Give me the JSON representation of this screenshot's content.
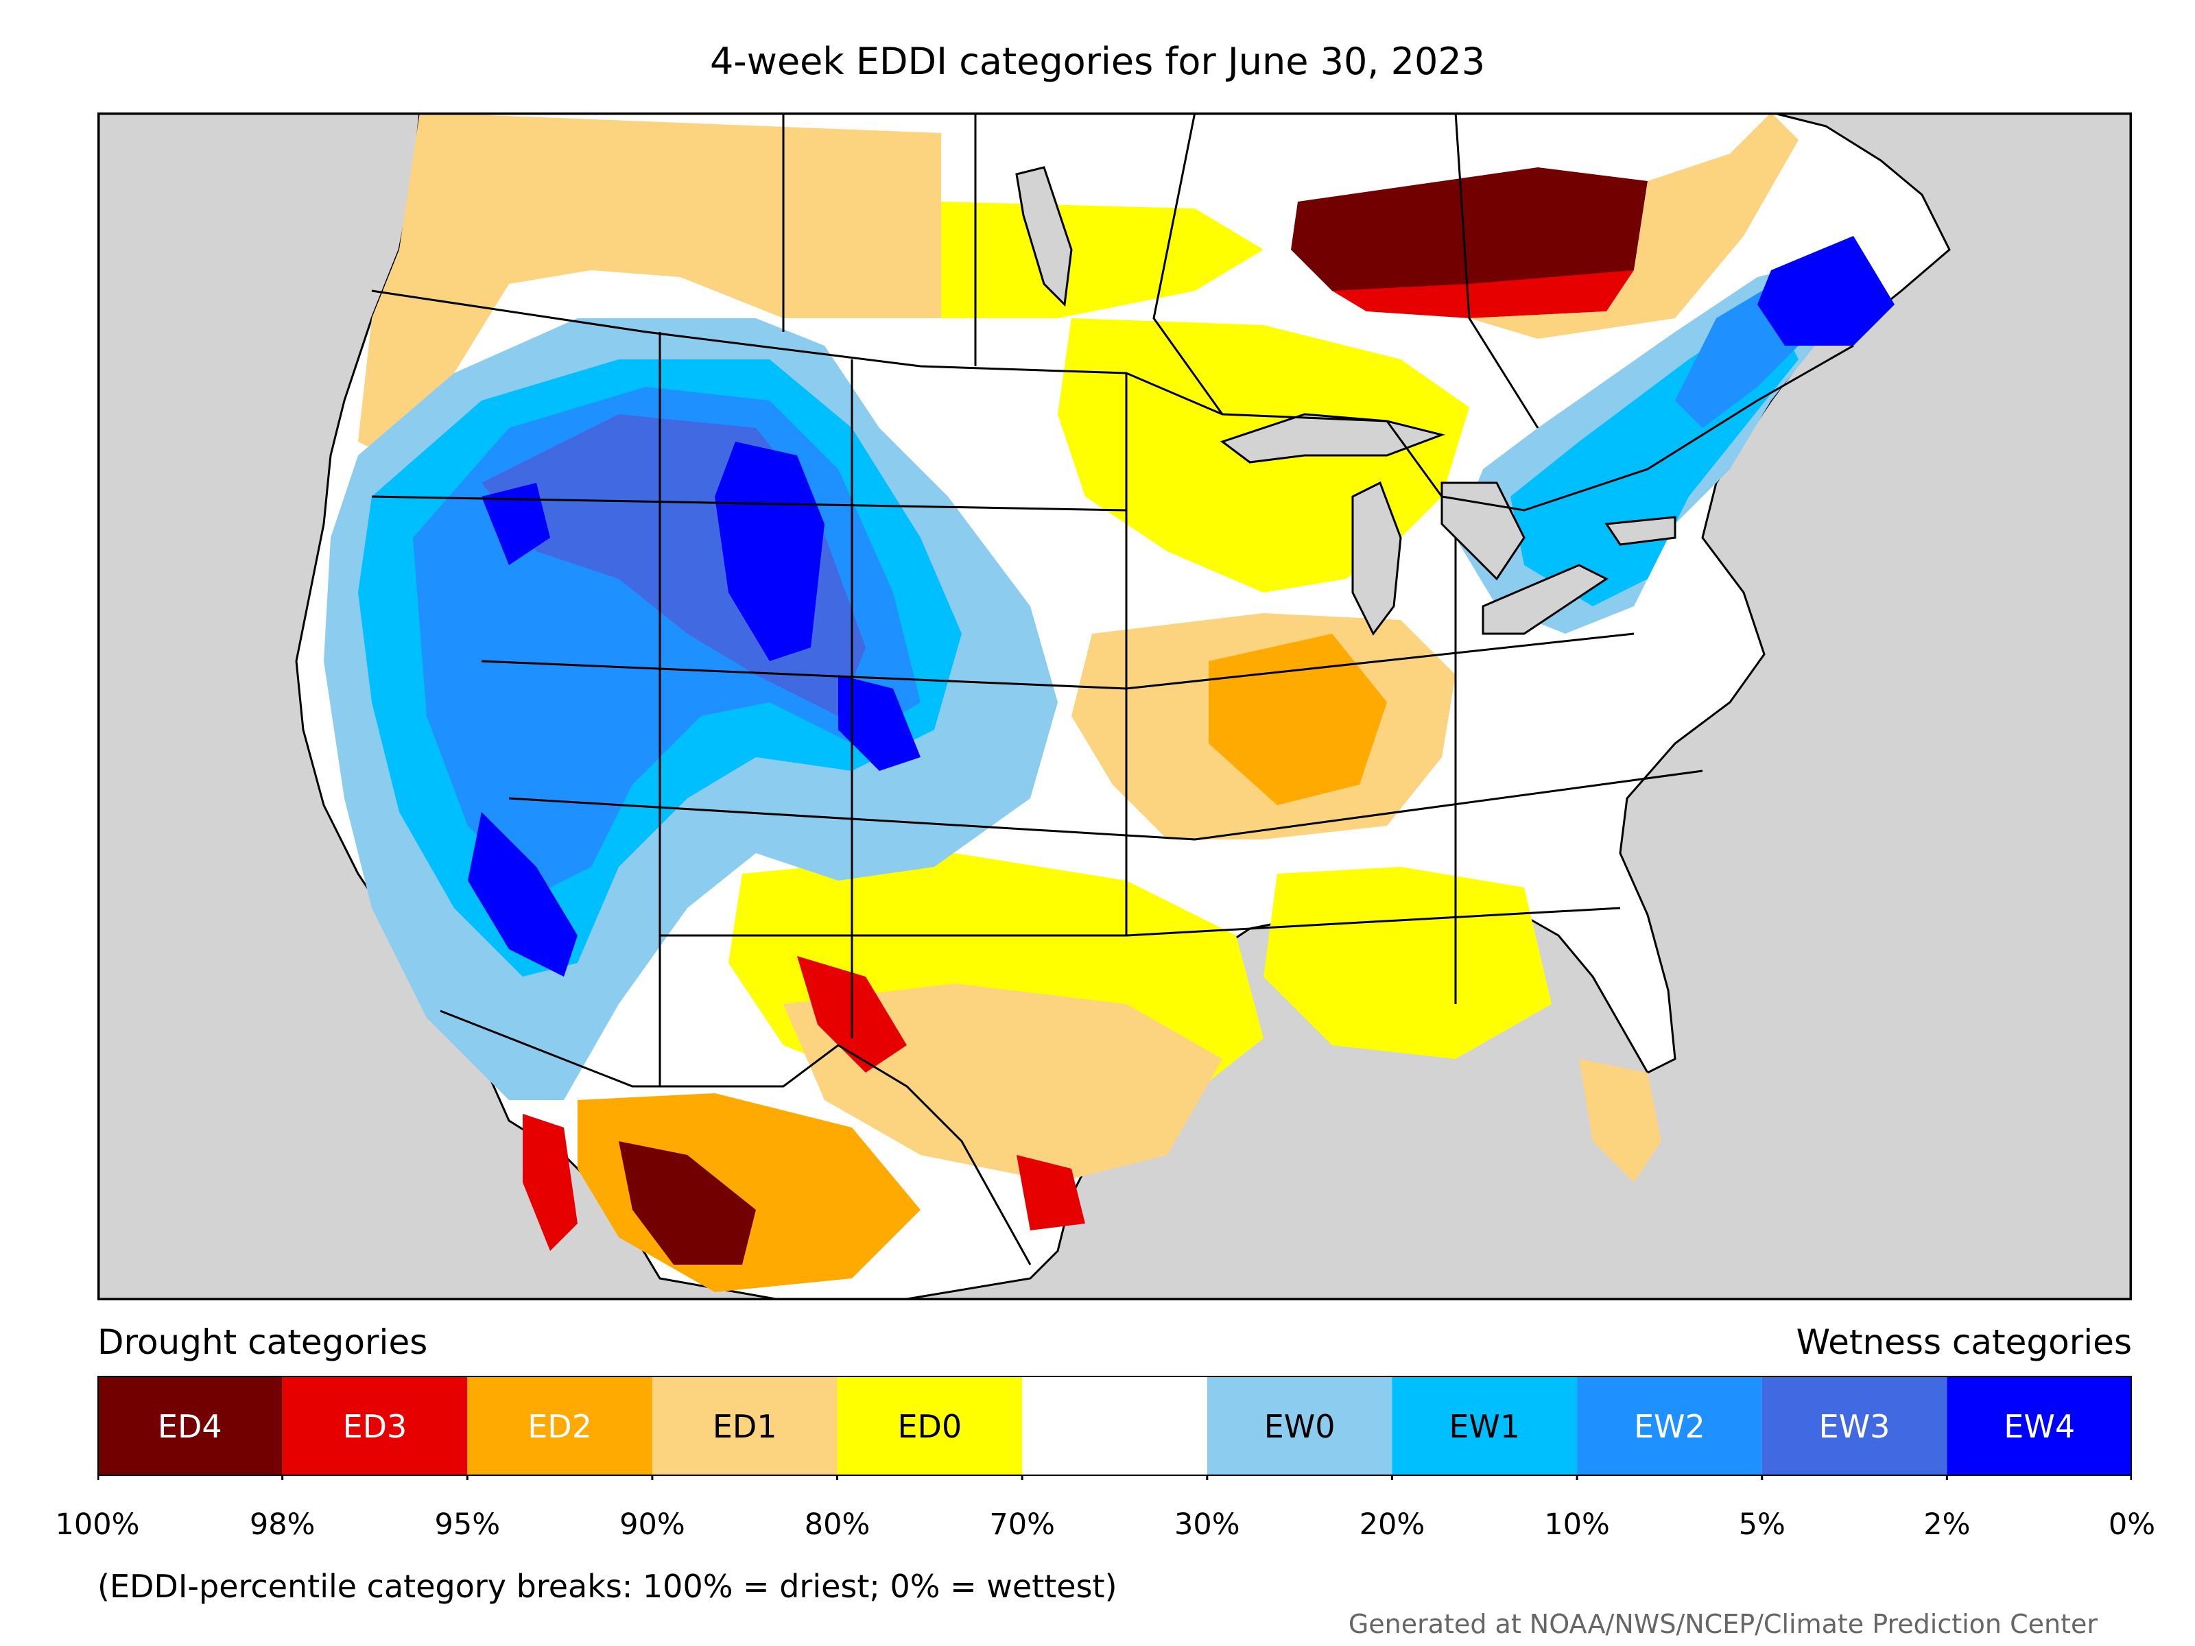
{
  "title": "4-week EDDI categories for June 30, 2023",
  "legend": {
    "drought_heading": "Drought categories",
    "wetness_heading": "Wetness categories",
    "categories": [
      {
        "label": "ED4",
        "color": "#730000",
        "text_color": "#ffffff"
      },
      {
        "label": "ED3",
        "color": "#e60000",
        "text_color": "#ffffff"
      },
      {
        "label": "ED2",
        "color": "#ffaa00",
        "text_color": "#ffffff"
      },
      {
        "label": "ED1",
        "color": "#fcd37f",
        "text_color": "#000000"
      },
      {
        "label": "ED0",
        "color": "#ffff00",
        "text_color": "#000000"
      },
      {
        "label": "",
        "color": "#ffffff",
        "text_color": "#000000"
      },
      {
        "label": "EW0",
        "color": "#8ccdef",
        "text_color": "#000000"
      },
      {
        "label": "EW1",
        "color": "#00bfff",
        "text_color": "#000000"
      },
      {
        "label": "EW2",
        "color": "#1e90ff",
        "text_color": "#ffffff"
      },
      {
        "label": "EW3",
        "color": "#4169e1",
        "text_color": "#ffffff"
      },
      {
        "label": "EW4",
        "color": "#0000ff",
        "text_color": "#ffffff"
      }
    ],
    "tick_labels": [
      "100%",
      "98%",
      "95%",
      "90%",
      "80%",
      "70%",
      "30%",
      "20%",
      "10%",
      "5%",
      "2%",
      "0%"
    ]
  },
  "note": "(EDDI-percentile category breaks: 100% = driest; 0% = wettest)",
  "credit": "Generated at NOAA/NWS/NCEP/Climate Prediction Center",
  "colors": {
    "ocean": "#d3d3d3",
    "land": "#ffffff",
    "border": "#000000"
  }
}
